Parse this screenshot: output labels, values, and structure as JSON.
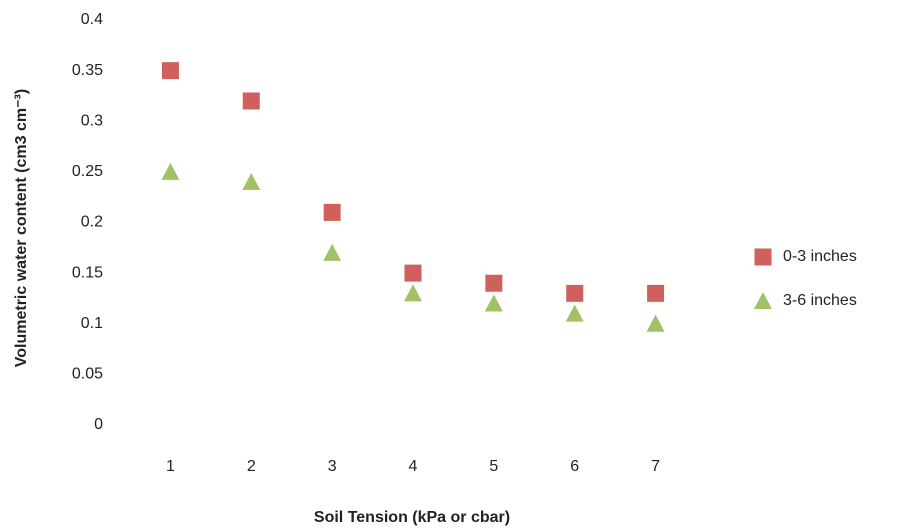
{
  "chart_data": {
    "type": "scatter",
    "x_label": "Soil Tension (kPa or cbar)",
    "y_label": "Volumetric water content (cm3 cm⁻³)",
    "categories": [
      "1",
      "2",
      "3",
      "4",
      "5",
      "6",
      "7"
    ],
    "series": [
      {
        "name": "0-3 inches",
        "color": "#d0605b",
        "marker": "square",
        "values": [
          0.35,
          0.32,
          0.21,
          0.15,
          0.14,
          0.13,
          0.13
        ]
      },
      {
        "name": "3-6 inches",
        "color": "#a2c164",
        "marker": "triangle",
        "values": [
          0.25,
          0.24,
          0.17,
          0.13,
          0.12,
          0.11,
          0.1
        ]
      }
    ],
    "ylim": [
      0,
      0.4
    ],
    "yticks": [
      0,
      0.05,
      0.1,
      0.15,
      0.2,
      0.25,
      0.3,
      0.35,
      0.4
    ],
    "legend": "right"
  }
}
